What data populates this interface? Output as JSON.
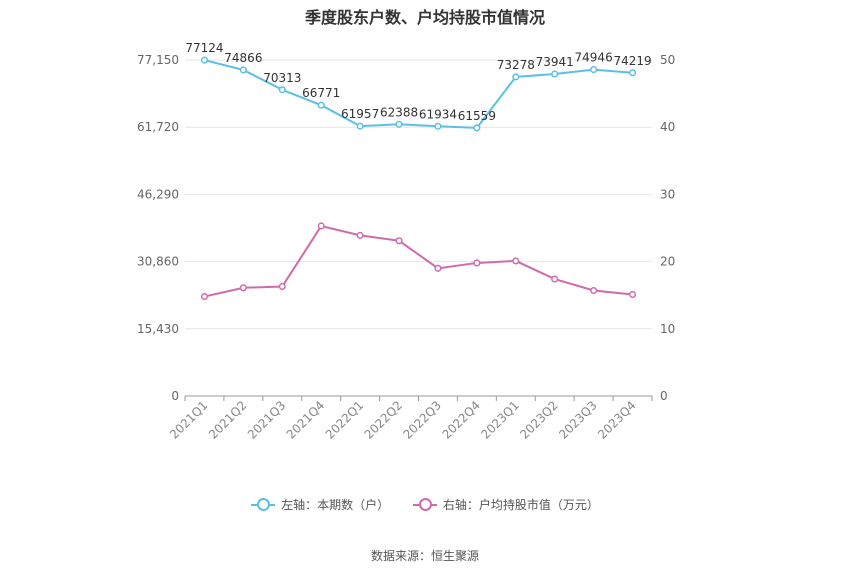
{
  "chart_data": {
    "type": "line",
    "title": "季度股东户数、户均持股市值情况",
    "categories": [
      "2021Q1",
      "2021Q2",
      "2021Q3",
      "2021Q4",
      "2022Q1",
      "2022Q2",
      "2022Q3",
      "2022Q4",
      "2023Q1",
      "2023Q2",
      "2023Q3",
      "2023Q4"
    ],
    "left_axis": {
      "ticks": [
        "0",
        "15,430",
        "30,860",
        "46,290",
        "61,720",
        "77,150"
      ],
      "ylim": [
        0,
        77150
      ]
    },
    "right_axis": {
      "ticks": [
        "0",
        "10",
        "20",
        "30",
        "40",
        "50"
      ],
      "ylim": [
        0,
        50
      ]
    },
    "series": [
      {
        "name": "左轴：本期数（户）",
        "axis": "left",
        "color": "#5bbfe8",
        "values": [
          77124,
          74866,
          70313,
          66771,
          61957,
          62388,
          61934,
          61559,
          73278,
          73941,
          74946,
          74219
        ],
        "labels": [
          "77124",
          "74866",
          "70313",
          "66771",
          "61957",
          "62388",
          "61934",
          "61559",
          "73278",
          "73941",
          "74946",
          "74219"
        ]
      },
      {
        "name": "右轴：户均持股市值（万元）",
        "axis": "right",
        "color": "#d16aac",
        "values": [
          14.8,
          16.1,
          16.3,
          25.3,
          23.9,
          23.1,
          19.0,
          19.8,
          20.1,
          17.4,
          15.7,
          15.1
        ]
      }
    ],
    "grid": true,
    "legend_position": "bottom"
  },
  "source": "数据来源：恒生聚源"
}
